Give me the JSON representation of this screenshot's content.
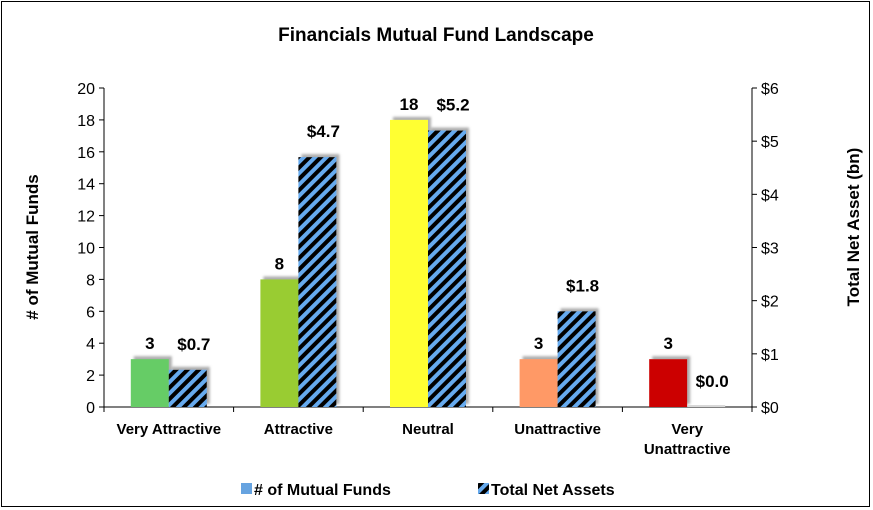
{
  "chart_data": {
    "type": "bar",
    "title": "Financials Mutual Fund Landscape",
    "categories": [
      [
        "Very Attractive"
      ],
      [
        "Attractive"
      ],
      [
        "Neutral"
      ],
      [
        "Unattractive"
      ],
      [
        "Very",
        "Unattractive"
      ]
    ],
    "series": [
      {
        "name": "# of Mutual Funds",
        "axis": "left",
        "values": [
          3,
          8,
          18,
          3,
          3
        ],
        "labels": [
          "3",
          "8",
          "18",
          "3",
          "3"
        ],
        "colors": [
          "#66cc66",
          "#99cc33",
          "#ffff33",
          "#ff9966",
          "#cc0000"
        ],
        "legend_color": "#66a3e0"
      },
      {
        "name": "Total Net Assets",
        "axis": "right",
        "values": [
          0.7,
          4.7,
          5.2,
          1.8,
          0.0
        ],
        "labels": [
          "$0.7",
          "$4.7",
          "$5.2",
          "$1.8",
          "$0.0"
        ],
        "pattern": "hatched",
        "colors": [
          "#66aaee",
          "#000000"
        ]
      }
    ],
    "y_left": {
      "label": "# of Mutual Funds",
      "ylim": [
        0,
        20
      ],
      "ticks": [
        "0",
        "2",
        "4",
        "6",
        "8",
        "10",
        "12",
        "14",
        "16",
        "18",
        "20"
      ]
    },
    "y_right": {
      "label": "Total Net Asset (bn)",
      "ylim": [
        0,
        6
      ],
      "ticks": [
        "$0",
        "$1",
        "$2",
        "$3",
        "$4",
        "$5",
        "$6"
      ]
    },
    "grid": false,
    "legend_position": "bottom"
  }
}
